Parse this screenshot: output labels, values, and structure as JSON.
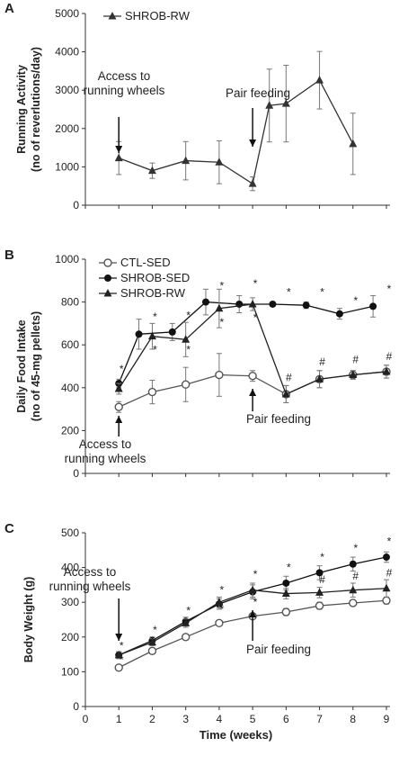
{
  "chart_data": [
    {
      "panel": "A",
      "type": "line",
      "ylabel": [
        "Running Activity",
        "(no of reverlutions/day)"
      ],
      "ylim": [
        0,
        5000
      ],
      "yticks": [
        0,
        1000,
        2000,
        3000,
        4000,
        5000
      ],
      "xlim": [
        0,
        9
      ],
      "x_tick_labels_shown": false,
      "series": [
        {
          "name": "SHROB-RW",
          "marker": "triangle",
          "color": "#333333",
          "x": [
            1,
            2,
            3,
            4,
            5,
            5.5,
            6,
            7,
            8,
            9
          ],
          "values": [
            1230,
            900,
            1160,
            1120,
            560,
            2600,
            2650,
            3260,
            1600,
            null
          ],
          "errors": [
            430,
            200,
            500,
            560,
            180,
            950,
            1000,
            750,
            800,
            null
          ]
        }
      ],
      "annotations": [
        {
          "text": [
            "Access to",
            "running wheels"
          ],
          "at_x": 1
        },
        {
          "text": [
            "Pair feeding"
          ],
          "at_x": 5
        }
      ],
      "legend": "top-left"
    },
    {
      "panel": "B",
      "type": "line",
      "ylabel": [
        "Daily Food Intake",
        "(no of 45-mg pellets)"
      ],
      "ylim": [
        0,
        1000
      ],
      "yticks": [
        0,
        200,
        400,
        600,
        800,
        1000
      ],
      "xlim": [
        0,
        9
      ],
      "x_tick_labels_shown": false,
      "series": [
        {
          "name": "CTL-SED",
          "marker": "open-circle",
          "color": "#555555",
          "x": [
            1,
            2,
            3,
            4,
            5,
            6,
            7,
            8,
            9
          ],
          "values": [
            310,
            380,
            415,
            460,
            455,
            370,
            440,
            460,
            475
          ],
          "errors": [
            25,
            55,
            80,
            100,
            25,
            40,
            40,
            20,
            30
          ]
        },
        {
          "name": "SHROB-SED",
          "marker": "filled-circle",
          "color": "#111111",
          "x": [
            1,
            1.6,
            2.6,
            3.6,
            4.6,
            5.6,
            6.6,
            7.6,
            8.6
          ],
          "values": [
            420,
            650,
            660,
            800,
            790,
            790,
            785,
            745,
            780
          ],
          "errors": [
            20,
            70,
            40,
            60,
            40,
            10,
            15,
            25,
            50
          ]
        },
        {
          "name": "SHROB-RW",
          "marker": "triangle",
          "color": "#222222",
          "x": [
            1,
            2,
            3,
            4,
            5,
            6,
            7,
            8,
            9
          ],
          "values": [
            395,
            640,
            625,
            770,
            790,
            370,
            440,
            460,
            475
          ],
          "errors": [
            25,
            60,
            80,
            90,
            30,
            40,
            40,
            20,
            30
          ]
        }
      ],
      "significance_marks": [
        {
          "text": "*",
          "x": 1,
          "y": 470
        },
        {
          "text": "*",
          "x": 2,
          "y": 715
        },
        {
          "text": "*",
          "x": 2,
          "y": 560
        },
        {
          "text": "*",
          "x": 3,
          "y": 720
        },
        {
          "text": "*",
          "x": 3,
          "y": 560
        },
        {
          "text": "*",
          "x": 4,
          "y": 860
        },
        {
          "text": "*",
          "x": 4,
          "y": 690
        },
        {
          "text": "*",
          "x": 5,
          "y": 870
        },
        {
          "text": "*",
          "x": 5,
          "y": 710
        },
        {
          "text": "*",
          "x": 6,
          "y": 830
        },
        {
          "text": "#",
          "x": 6,
          "y": 430
        },
        {
          "text": "*",
          "x": 7,
          "y": 830
        },
        {
          "text": "#",
          "x": 7,
          "y": 505
        },
        {
          "text": "*",
          "x": 8,
          "y": 790
        },
        {
          "text": "#",
          "x": 8,
          "y": 515
        },
        {
          "text": "*",
          "x": 9,
          "y": 845
        },
        {
          "text": "#",
          "x": 9,
          "y": 530
        }
      ],
      "annotations": [
        {
          "text": [
            "Access to",
            "running wheels"
          ],
          "at_x": 1
        },
        {
          "text": [
            "Pair feeding"
          ],
          "at_x": 5
        }
      ],
      "legend": "top-left"
    },
    {
      "panel": "C",
      "type": "line",
      "xlabel": "Time (weeks)",
      "ylabel": [
        "Body Weight (g)"
      ],
      "ylim": [
        0,
        500
      ],
      "yticks": [
        0,
        100,
        200,
        300,
        400,
        500
      ],
      "xlim": [
        0,
        9
      ],
      "xticks": [
        0,
        1,
        2,
        3,
        4,
        5,
        6,
        7,
        8,
        9
      ],
      "series": [
        {
          "name": "CTL-SED",
          "marker": "open-circle",
          "color": "#555555",
          "x": [
            1,
            2,
            3,
            4,
            5,
            6,
            7,
            8,
            9
          ],
          "values": [
            112,
            160,
            200,
            240,
            260,
            272,
            290,
            298,
            305
          ],
          "errors": [
            8,
            6,
            6,
            5,
            6,
            10,
            10,
            8,
            10
          ]
        },
        {
          "name": "SHROB-SED",
          "marker": "filled-circle",
          "color": "#111111",
          "x": [
            1,
            2,
            3,
            4,
            5,
            6,
            7,
            8,
            9
          ],
          "values": [
            148,
            190,
            245,
            295,
            330,
            355,
            385,
            410,
            430
          ],
          "errors": [
            10,
            10,
            12,
            15,
            20,
            20,
            20,
            20,
            15
          ]
        },
        {
          "name": "SHROB-RW",
          "marker": "triangle",
          "color": "#222222",
          "x": [
            1,
            2,
            3,
            4,
            5,
            6,
            7,
            8,
            9
          ],
          "values": [
            148,
            185,
            240,
            300,
            335,
            325,
            328,
            335,
            340
          ],
          "errors": [
            10,
            10,
            12,
            15,
            20,
            15,
            15,
            20,
            25
          ]
        }
      ],
      "significance_marks": [
        {
          "text": "*",
          "x": 1,
          "y": 165
        },
        {
          "text": "*",
          "x": 1,
          "y": 125
        },
        {
          "text": "*",
          "x": 2,
          "y": 210
        },
        {
          "text": "*",
          "x": 3,
          "y": 265
        },
        {
          "text": "*",
          "x": 4,
          "y": 325
        },
        {
          "text": "*",
          "x": 4,
          "y": 270
        },
        {
          "text": "*",
          "x": 5,
          "y": 370
        },
        {
          "text": "*",
          "x": 5,
          "y": 290
        },
        {
          "text": "*",
          "x": 6,
          "y": 390
        },
        {
          "text": "*",
          "x": 7,
          "y": 420
        },
        {
          "text": "#",
          "x": 7,
          "y": 355
        },
        {
          "text": "*",
          "x": 8,
          "y": 445
        },
        {
          "text": "#",
          "x": 8,
          "y": 365
        },
        {
          "text": "*",
          "x": 9,
          "y": 465
        },
        {
          "text": "#",
          "x": 9,
          "y": 375
        }
      ],
      "annotations": [
        {
          "text": [
            "Access to",
            "running wheels"
          ],
          "at_x": 1
        },
        {
          "text": [
            "Pair feeding"
          ],
          "at_x": 5
        }
      ]
    }
  ]
}
